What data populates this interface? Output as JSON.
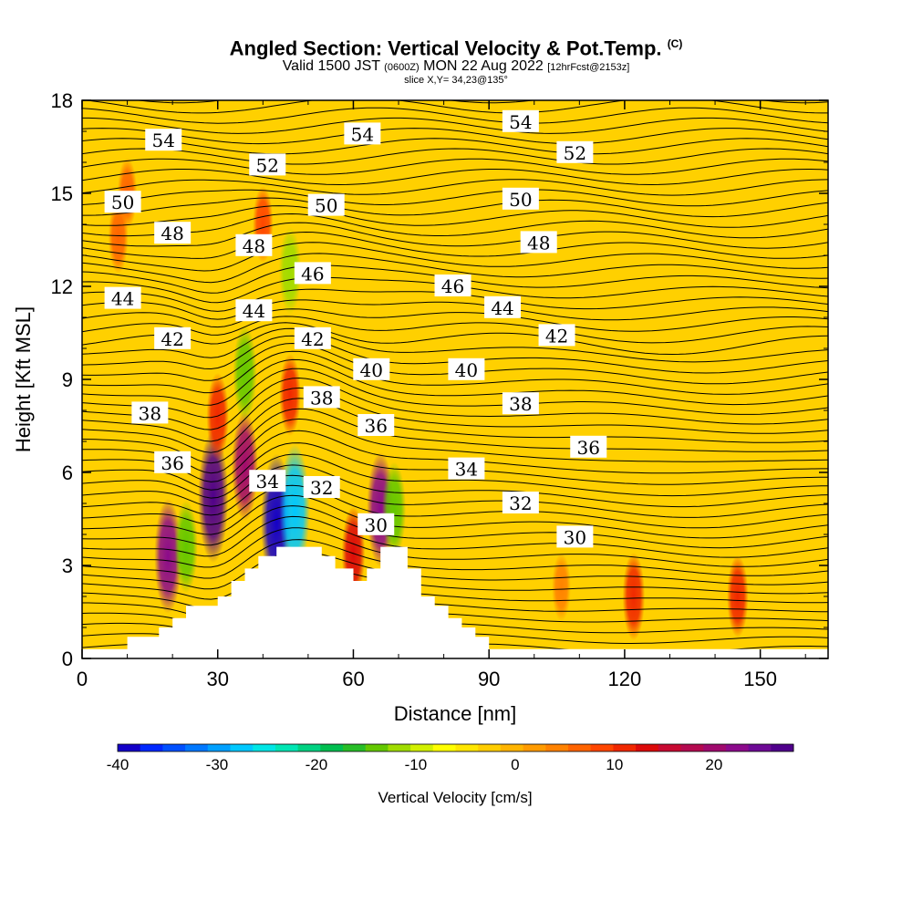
{
  "title": {
    "main": "Angled Section: Vertical Velocity & Pot.Temp.",
    "copyright": "(C)",
    "valid_prefix": "Valid 1500 JST",
    "valid_utc": "(0600Z)",
    "valid_date": "MON 22 Aug 2022",
    "forecast": "[12hrFcst@2153z]",
    "slice": "slice X,Y= 34,23@135°"
  },
  "chart_data": {
    "type": "heatmap",
    "xlabel": "Distance [nm]",
    "ylabel": "Height [Kft MSL]",
    "xlim": [
      0,
      165
    ],
    "ylim": [
      0,
      18
    ],
    "x_ticks": [
      "0",
      "30",
      "60",
      "90",
      "120",
      "150"
    ],
    "y_ticks": [
      "0",
      "3",
      "6",
      "9",
      "12",
      "15",
      "18"
    ],
    "x_tick_values": [
      0,
      30,
      60,
      90,
      120,
      150
    ],
    "y_tick_values": [
      0,
      3,
      6,
      9,
      12,
      15,
      18
    ],
    "terrain": [
      [
        0,
        0.3
      ],
      [
        10,
        0.3
      ],
      [
        10,
        0.7
      ],
      [
        17,
        0.7
      ],
      [
        17,
        1.0
      ],
      [
        20,
        1.0
      ],
      [
        20,
        1.3
      ],
      [
        23,
        1.3
      ],
      [
        23,
        1.7
      ],
      [
        30,
        1.7
      ],
      [
        30,
        2.0
      ],
      [
        33,
        2.0
      ],
      [
        33,
        2.5
      ],
      [
        36,
        2.5
      ],
      [
        36,
        2.9
      ],
      [
        39,
        2.9
      ],
      [
        39,
        3.3
      ],
      [
        43,
        3.3
      ],
      [
        43,
        3.6
      ],
      [
        53,
        3.6
      ],
      [
        53,
        3.3
      ],
      [
        56,
        3.3
      ],
      [
        56,
        2.9
      ],
      [
        60,
        2.9
      ],
      [
        60,
        2.5
      ],
      [
        63,
        2.5
      ],
      [
        63,
        2.9
      ],
      [
        66,
        2.9
      ],
      [
        66,
        3.6
      ],
      [
        72,
        3.6
      ],
      [
        72,
        2.9
      ],
      [
        75,
        2.9
      ],
      [
        75,
        2.0
      ],
      [
        78,
        2.0
      ],
      [
        78,
        1.7
      ],
      [
        81,
        1.7
      ],
      [
        81,
        1.3
      ],
      [
        84,
        1.3
      ],
      [
        84,
        1.0
      ],
      [
        87,
        1.0
      ],
      [
        87,
        0.7
      ],
      [
        90,
        0.7
      ],
      [
        90,
        0.3
      ],
      [
        165,
        0.3
      ]
    ],
    "vertical_velocity_features": [
      {
        "x": 19,
        "y": 3.3,
        "value": 22
      },
      {
        "x": 23,
        "y": 3.6,
        "value": -14
      },
      {
        "x": 29,
        "y": 5.2,
        "value": 28
      },
      {
        "x": 36,
        "y": 6.2,
        "value": 20
      },
      {
        "x": 30,
        "y": 7.8,
        "value": 12
      },
      {
        "x": 43,
        "y": 4.4,
        "value": -38
      },
      {
        "x": 47,
        "y": 4.8,
        "value": -28
      },
      {
        "x": 46,
        "y": 8.5,
        "value": 10
      },
      {
        "x": 36,
        "y": 9.2,
        "value": -15
      },
      {
        "x": 46,
        "y": 12.5,
        "value": -12
      },
      {
        "x": 60,
        "y": 3.4,
        "value": 14
      },
      {
        "x": 66,
        "y": 4.8,
        "value": 22
      },
      {
        "x": 69,
        "y": 4.8,
        "value": -15
      },
      {
        "x": 40,
        "y": 14.0,
        "value": 8
      },
      {
        "x": 122,
        "y": 2.0,
        "value": 12
      },
      {
        "x": 106,
        "y": 2.3,
        "value": 5
      },
      {
        "x": 145,
        "y": 2.0,
        "value": 10
      },
      {
        "x": 10,
        "y": 15.0,
        "value": 6
      },
      {
        "x": 8,
        "y": 13.6,
        "value": 7
      }
    ],
    "pot_temp_contour_labels": [
      {
        "text": "54",
        "x": 18,
        "y": 16.7
      },
      {
        "text": "54",
        "x": 62,
        "y": 16.9
      },
      {
        "text": "54",
        "x": 97,
        "y": 17.3
      },
      {
        "text": "52",
        "x": 41,
        "y": 15.9
      },
      {
        "text": "52",
        "x": 109,
        "y": 16.3
      },
      {
        "text": "50",
        "x": 9,
        "y": 14.7
      },
      {
        "text": "50",
        "x": 54,
        "y": 14.6
      },
      {
        "text": "50",
        "x": 97,
        "y": 14.8
      },
      {
        "text": "48",
        "x": 20,
        "y": 13.7
      },
      {
        "text": "48",
        "x": 38,
        "y": 13.3
      },
      {
        "text": "48",
        "x": 101,
        "y": 13.4
      },
      {
        "text": "46",
        "x": 51,
        "y": 12.4
      },
      {
        "text": "46",
        "x": 82,
        "y": 12.0
      },
      {
        "text": "44",
        "x": 9,
        "y": 11.6
      },
      {
        "text": "44",
        "x": 38,
        "y": 11.2
      },
      {
        "text": "44",
        "x": 93,
        "y": 11.3
      },
      {
        "text": "42",
        "x": 20,
        "y": 10.3
      },
      {
        "text": "42",
        "x": 51,
        "y": 10.3
      },
      {
        "text": "42",
        "x": 105,
        "y": 10.4
      },
      {
        "text": "40",
        "x": 64,
        "y": 9.3
      },
      {
        "text": "40",
        "x": 85,
        "y": 9.3
      },
      {
        "text": "38",
        "x": 15,
        "y": 7.9
      },
      {
        "text": "38",
        "x": 53,
        "y": 8.4
      },
      {
        "text": "38",
        "x": 97,
        "y": 8.2
      },
      {
        "text": "36",
        "x": 20,
        "y": 6.3
      },
      {
        "text": "36",
        "x": 65,
        "y": 7.5
      },
      {
        "text": "36",
        "x": 112,
        "y": 6.8
      },
      {
        "text": "34",
        "x": 41,
        "y": 5.7
      },
      {
        "text": "34",
        "x": 85,
        "y": 6.1
      },
      {
        "text": "32",
        "x": 53,
        "y": 5.5
      },
      {
        "text": "32",
        "x": 97,
        "y": 5.0
      },
      {
        "text": "30",
        "x": 65,
        "y": 4.3
      },
      {
        "text": "30",
        "x": 109,
        "y": 3.9
      }
    ]
  },
  "colorbar": {
    "label": "Vertical Velocity [cm/s]",
    "tick_labels": [
      "-40",
      "-30",
      "-20",
      "-10",
      "0",
      "10",
      "20"
    ],
    "tick_values": [
      -40,
      -30,
      -20,
      -10,
      0,
      10,
      20
    ],
    "range": [
      -40,
      28
    ],
    "colors": [
      "#1400c8",
      "#0028ff",
      "#0050ff",
      "#0078ff",
      "#00a0ff",
      "#00c8ff",
      "#00e6e6",
      "#00e6b4",
      "#00d282",
      "#00be50",
      "#28be28",
      "#64c800",
      "#a0dc00",
      "#d2f000",
      "#ffff00",
      "#ffe600",
      "#ffcd00",
      "#ffb400",
      "#ff9b00",
      "#ff8200",
      "#ff6400",
      "#ff4600",
      "#f02800",
      "#dc0a0a",
      "#c80a32",
      "#b40a50",
      "#a00a6e",
      "#8c0a8c",
      "#6e0a96",
      "#50008c"
    ]
  }
}
